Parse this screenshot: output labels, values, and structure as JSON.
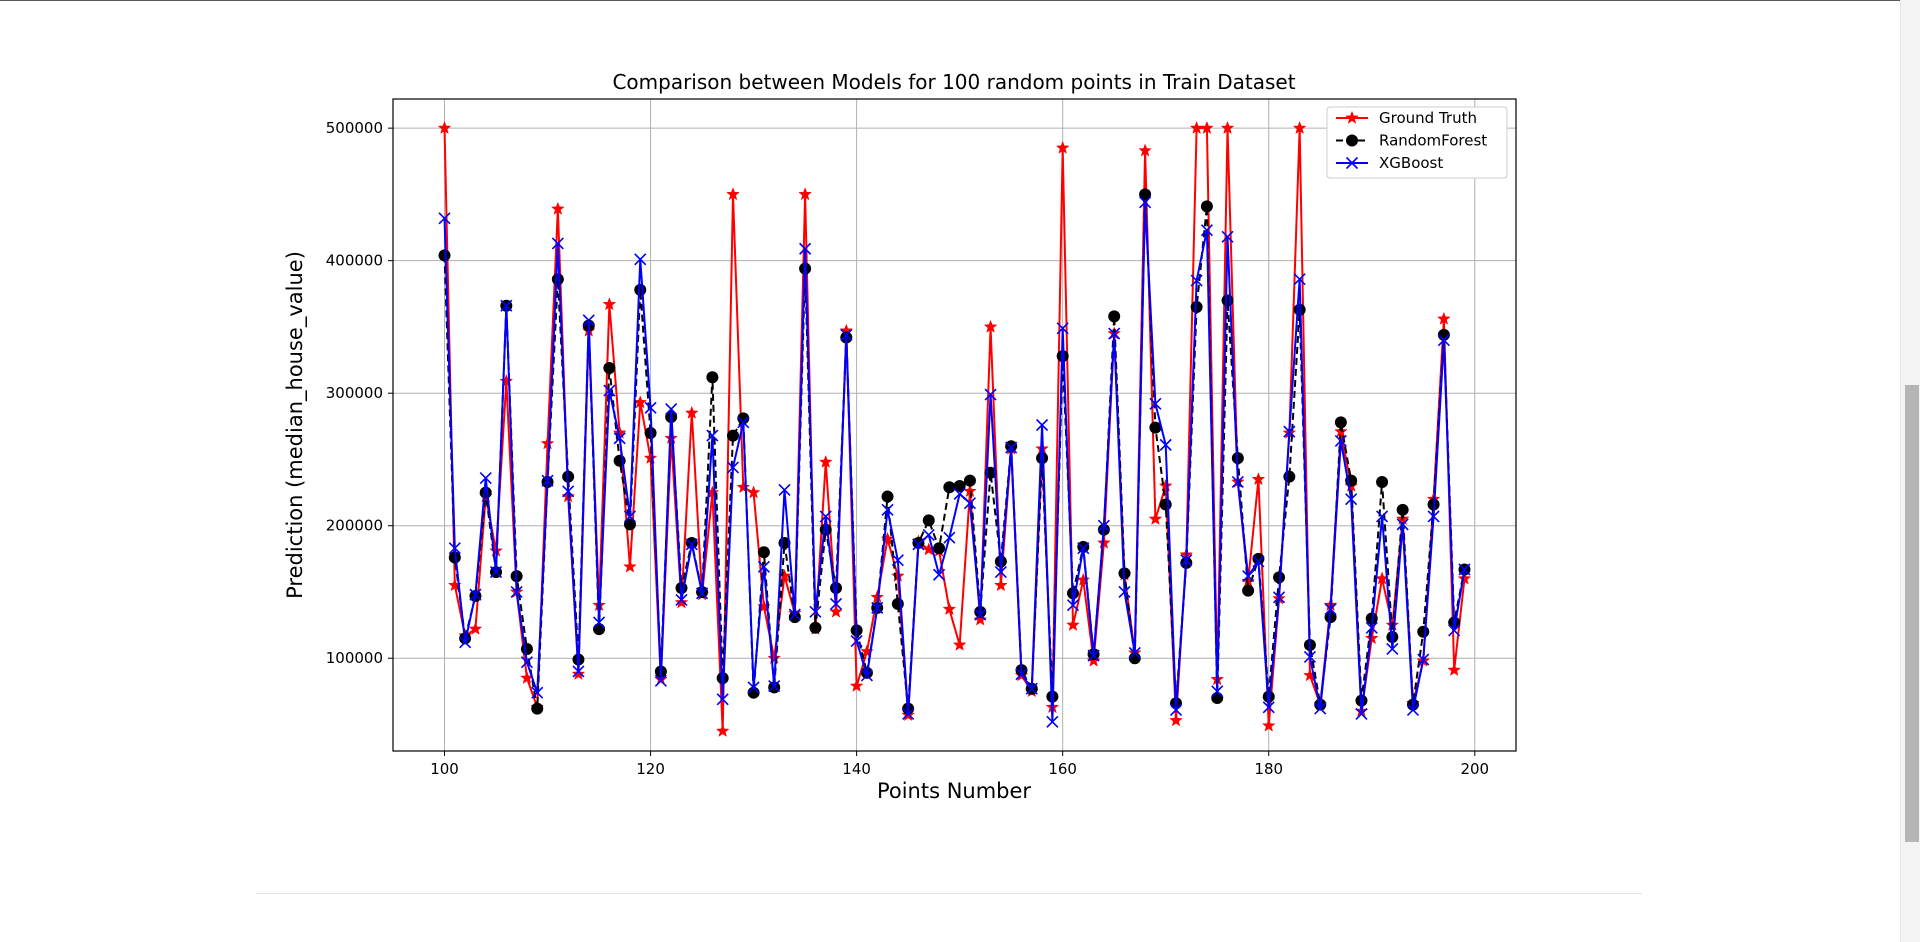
{
  "scrollbar": {
    "position": 0.52,
    "visible_fraction": 0.49
  },
  "chart_data": {
    "type": "line",
    "title": "Comparison between Models for 100 random points in Train Dataset",
    "xlabel": "Points Number",
    "ylabel": "Prediction (median_house_value)",
    "xlim": [
      95,
      204
    ],
    "ylim": [
      30000,
      522000
    ],
    "xticks": [
      100,
      120,
      140,
      160,
      180,
      200
    ],
    "yticks": [
      100000,
      200000,
      300000,
      400000,
      500000
    ],
    "xtick_labels": [
      "100",
      "120",
      "140",
      "160",
      "180",
      "200"
    ],
    "ytick_labels": [
      "100000",
      "200000",
      "300000",
      "400000",
      "500000"
    ],
    "grid": true,
    "legend_position": "upper right",
    "x_start": 100,
    "series": [
      {
        "name": "Ground Truth",
        "color": "#ff0000",
        "marker": "star",
        "linestyle": "solid",
        "values": [
          500000,
          155000,
          117000,
          122000,
          222000,
          181000,
          309000,
          150000,
          85000,
          63000,
          262000,
          439000,
          222000,
          88000,
          347000,
          140000,
          367000,
          270000,
          169000,
          293000,
          251000,
          84000,
          266000,
          142000,
          285000,
          148000,
          225000,
          45000,
          450000,
          229000,
          225000,
          139000,
          100000,
          162000,
          134000,
          450000,
          122000,
          248000,
          135000,
          347000,
          79000,
          105000,
          146000,
          190000,
          162000,
          57000,
          188000,
          182000,
          181000,
          137000,
          110000,
          226000,
          129000,
          350000,
          155000,
          258000,
          87000,
          75000,
          258000,
          63000,
          485000,
          125000,
          159000,
          98000,
          187000,
          345000,
          163000,
          104000,
          483000,
          205000,
          230000,
          53000,
          178000,
          500000,
          500000,
          84000,
          500000,
          233000,
          158000,
          235000,
          49000,
          145000,
          270000,
          500000,
          87000,
          65000,
          140000,
          271000,
          230000,
          60000,
          115000,
          160000,
          125000,
          205000,
          66000,
          98000,
          220000,
          356000,
          91000,
          160000
        ]
      },
      {
        "name": "RandomForest",
        "color": "#000000",
        "marker": "circle",
        "linestyle": "dashed",
        "values": [
          404000,
          176000,
          115000,
          147000,
          225000,
          165000,
          366000,
          162000,
          107000,
          62000,
          233000,
          386000,
          237000,
          99000,
          351000,
          122000,
          319000,
          249000,
          201000,
          378000,
          270000,
          90000,
          282000,
          153000,
          187000,
          150000,
          312000,
          85000,
          268000,
          281000,
          74000,
          180000,
          78000,
          187000,
          131000,
          394000,
          123000,
          197000,
          153000,
          342000,
          121000,
          89000,
          138000,
          222000,
          141000,
          62000,
          187000,
          204000,
          183000,
          229000,
          230000,
          234000,
          135000,
          240000,
          173000,
          260000,
          91000,
          77000,
          251000,
          71000,
          328000,
          149000,
          184000,
          103000,
          197000,
          358000,
          164000,
          100000,
          450000,
          274000,
          216000,
          66000,
          172000,
          365000,
          441000,
          70000,
          370000,
          251000,
          151000,
          175000,
          71000,
          161000,
          237000,
          363000,
          110000,
          65000,
          131000,
          278000,
          234000,
          68000,
          130000,
          233000,
          116000,
          212000,
          65000,
          120000,
          216000,
          344000,
          127000,
          167000
        ]
      },
      {
        "name": "XGBoost",
        "color": "#0000ff",
        "marker": "x",
        "linestyle": "solid",
        "values": [
          432000,
          183000,
          112000,
          148000,
          236000,
          165000,
          366000,
          150000,
          97000,
          74000,
          234000,
          413000,
          226000,
          90000,
          355000,
          127000,
          302000,
          266000,
          207000,
          401000,
          289000,
          83000,
          288000,
          144000,
          186000,
          149000,
          268000,
          69000,
          244000,
          278000,
          78000,
          169000,
          79000,
          227000,
          133000,
          409000,
          135000,
          207000,
          141000,
          344000,
          113000,
          87000,
          138000,
          212000,
          174000,
          58000,
          186000,
          193000,
          163000,
          191000,
          224000,
          217000,
          133000,
          299000,
          165000,
          259000,
          88000,
          77000,
          276000,
          52000,
          349000,
          140000,
          183000,
          102000,
          200000,
          345000,
          150000,
          104000,
          444000,
          292000,
          261000,
          61000,
          174000,
          385000,
          423000,
          75000,
          418000,
          233000,
          162000,
          173000,
          63000,
          146000,
          271000,
          386000,
          101000,
          62000,
          137000,
          264000,
          220000,
          58000,
          123000,
          207000,
          107000,
          201000,
          61000,
          99000,
          207000,
          340000,
          121000,
          167000
        ]
      }
    ]
  }
}
